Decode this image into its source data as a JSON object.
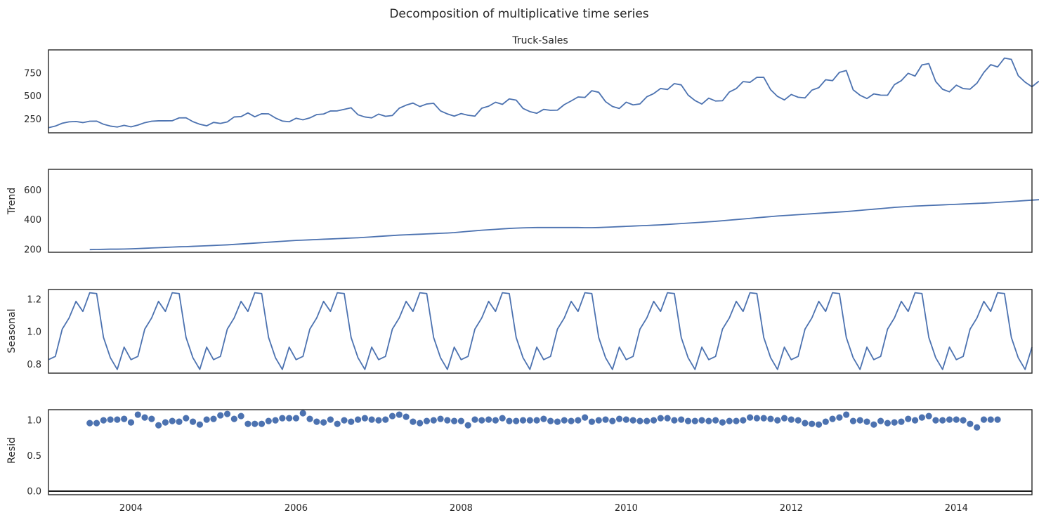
{
  "suptitle": "Decomposition of multiplicative time series",
  "chart_data": [
    {
      "type": "line",
      "title": "Truck-Sales",
      "ylabel": "",
      "x_start": "2003-01",
      "frequency": "monthly",
      "xlim": [
        "2003-01",
        "2014-12"
      ],
      "ylim": [
        100,
        1000
      ],
      "yticks": [
        250,
        500,
        750
      ],
      "series": [
        {
          "values": [
            155,
            173,
            204,
            219,
            223,
            211,
            226,
            227,
            193,
            173,
            163,
            181,
            165,
            184,
            210,
            226,
            230,
            230,
            231,
            262,
            263,
            221,
            193,
            176,
            213,
            202,
            218,
            272,
            276,
            316,
            274,
            307,
            306,
            261,
            228,
            220,
            258,
            241,
            262,
            298,
            304,
            337,
            338,
            355,
            372,
            296,
            272,
            262,
            303,
            279,
            288,
            367,
            400,
            423,
            385,
            413,
            420,
            338,
            305,
            281,
            309,
            291,
            281,
            367,
            389,
            432,
            409,
            468,
            455,
            365,
            330,
            312,
            354,
            344,
            346,
            406,
            446,
            489,
            484,
            557,
            540,
            438,
            386,
            364,
            432,
            403,
            414,
            491,
            526,
            581,
            570,
            634,
            620,
            510,
            450,
            412,
            476,
            445,
            448,
            543,
            580,
            656,
            648,
            702,
            702,
            568,
            495,
            457,
            516,
            486,
            479,
            563,
            590,
            676,
            666,
            756,
            776,
            567,
            508,
            472,
            522,
            509,
            508,
            623,
            666,
            746,
            716,
            837,
            851,
            657,
            573,
            545,
            617,
            580,
            574,
            639,
            755,
            840,
            815,
            911,
            897,
            720,
            650,
            600,
            660
          ]
        }
      ]
    },
    {
      "type": "line",
      "title": "",
      "ylabel": "Trend",
      "x_start": "2003-07",
      "ylim": [
        180,
        740
      ],
      "yticks": [
        200,
        400,
        600
      ],
      "series": [
        {
          "values": [
            198,
            199,
            200,
            201,
            201,
            202,
            203,
            205,
            207,
            209,
            211,
            213,
            215,
            217,
            218,
            220,
            222,
            224,
            226,
            228,
            230,
            233,
            236,
            239,
            242,
            245,
            248,
            251,
            254,
            257,
            260,
            262,
            264,
            266,
            268,
            270,
            272,
            274,
            276,
            278,
            281,
            284,
            287,
            290,
            293,
            296,
            298,
            300,
            302,
            304,
            306,
            308,
            310,
            313,
            317,
            321,
            325,
            329,
            332,
            335,
            338,
            341,
            343,
            345,
            346,
            347,
            347,
            347,
            347,
            347,
            347,
            347,
            346,
            346,
            347,
            349,
            351,
            353,
            355,
            357,
            359,
            361,
            363,
            365,
            368,
            371,
            374,
            377,
            380,
            383,
            386,
            389,
            393,
            397,
            401,
            405,
            409,
            413,
            417,
            421,
            425,
            428,
            431,
            434,
            437,
            440,
            443,
            446,
            449,
            452,
            455,
            459,
            463,
            467,
            471,
            475,
            479,
            483,
            486,
            489,
            492,
            494,
            496,
            498,
            500,
            502,
            504,
            506,
            508,
            510,
            512,
            514,
            517,
            520,
            523,
            526,
            529,
            532,
            535,
            538,
            541,
            545,
            549,
            553,
            556,
            559,
            561,
            563,
            565,
            567,
            569,
            571,
            572,
            573,
            574,
            575,
            576,
            576,
            577,
            578,
            579,
            580,
            581,
            583,
            585,
            586,
            587,
            588,
            588,
            589,
            589,
            590,
            591,
            592,
            593,
            595,
            598,
            601,
            605,
            609,
            613,
            617,
            621,
            625,
            629,
            633,
            637,
            641,
            645,
            649,
            653,
            657,
            661,
            665,
            668,
            670,
            672,
            675,
            678,
            681,
            685,
            689,
            693,
            697,
            701,
            705,
            709,
            712,
            715,
            718,
            721,
            724,
            726,
            728,
            730,
            732,
            734
          ]
        }
      ]
    },
    {
      "type": "line",
      "title": "",
      "ylabel": "Seasonal",
      "x_start": "2003-01",
      "ylim": [
        0.745,
        1.26
      ],
      "yticks": [
        0.8,
        1.0,
        1.2
      ],
      "pattern": [
        0.828,
        0.848,
        1.016,
        1.085,
        1.187,
        1.125,
        1.24,
        1.235,
        0.965,
        0.84,
        0.768,
        0.905
      ],
      "years": 12
    },
    {
      "type": "scatter",
      "title": "",
      "ylabel": "Resid",
      "x_start": "2003-07",
      "ylim": [
        -0.05,
        1.15
      ],
      "yticks": [
        0.0,
        0.5,
        1.0
      ],
      "zero_line": 0,
      "series": [
        {
          "values": [
            0.96,
            0.96,
            1.0,
            1.01,
            1.01,
            1.02,
            0.97,
            1.08,
            1.04,
            1.02,
            0.93,
            0.97,
            0.99,
            0.98,
            1.03,
            0.98,
            0.94,
            1.01,
            1.02,
            1.07,
            1.09,
            1.02,
            1.06,
            0.95,
            0.95,
            0.95,
            0.99,
            1.0,
            1.03,
            1.03,
            1.03,
            1.1,
            1.02,
            0.98,
            0.97,
            1.01,
            0.95,
            1.0,
            0.98,
            1.01,
            1.03,
            1.01,
            1.0,
            1.01,
            1.06,
            1.08,
            1.05,
            0.98,
            0.96,
            0.99,
            1.0,
            1.02,
            1.0,
            0.99,
            0.99,
            0.93,
            1.01,
            1.0,
            1.01,
            1.0,
            1.03,
            0.99,
            0.99,
            1.0,
            1.0,
            1.0,
            1.02,
            0.99,
            0.98,
            1.0,
            0.99,
            1.0,
            1.04,
            0.98,
            1.0,
            1.01,
            0.99,
            1.02,
            1.01,
            1.0,
            0.99,
            0.99,
            1.0,
            1.03,
            1.03,
            1.0,
            1.01,
            0.99,
            0.99,
            1.0,
            0.99,
            1.0,
            0.97,
            0.99,
            0.99,
            1.0,
            1.04,
            1.03,
            1.03,
            1.02,
            1.0,
            1.03,
            1.01,
            1.0,
            0.96,
            0.95,
            0.94,
            0.98,
            1.02,
            1.04,
            1.08,
            0.99,
            1.0,
            0.98,
            0.94,
            0.99,
            0.96,
            0.97,
            0.98,
            1.02,
            1.0,
            1.04,
            1.06,
            1.0,
            1.0,
            1.01,
            1.01,
            1.0,
            0.95,
            0.9,
            1.01,
            1.01,
            1.01
          ]
        }
      ]
    }
  ],
  "x_axis": {
    "tick_labels": [
      "2004",
      "2006",
      "2008",
      "2010",
      "2012",
      "2014"
    ]
  }
}
